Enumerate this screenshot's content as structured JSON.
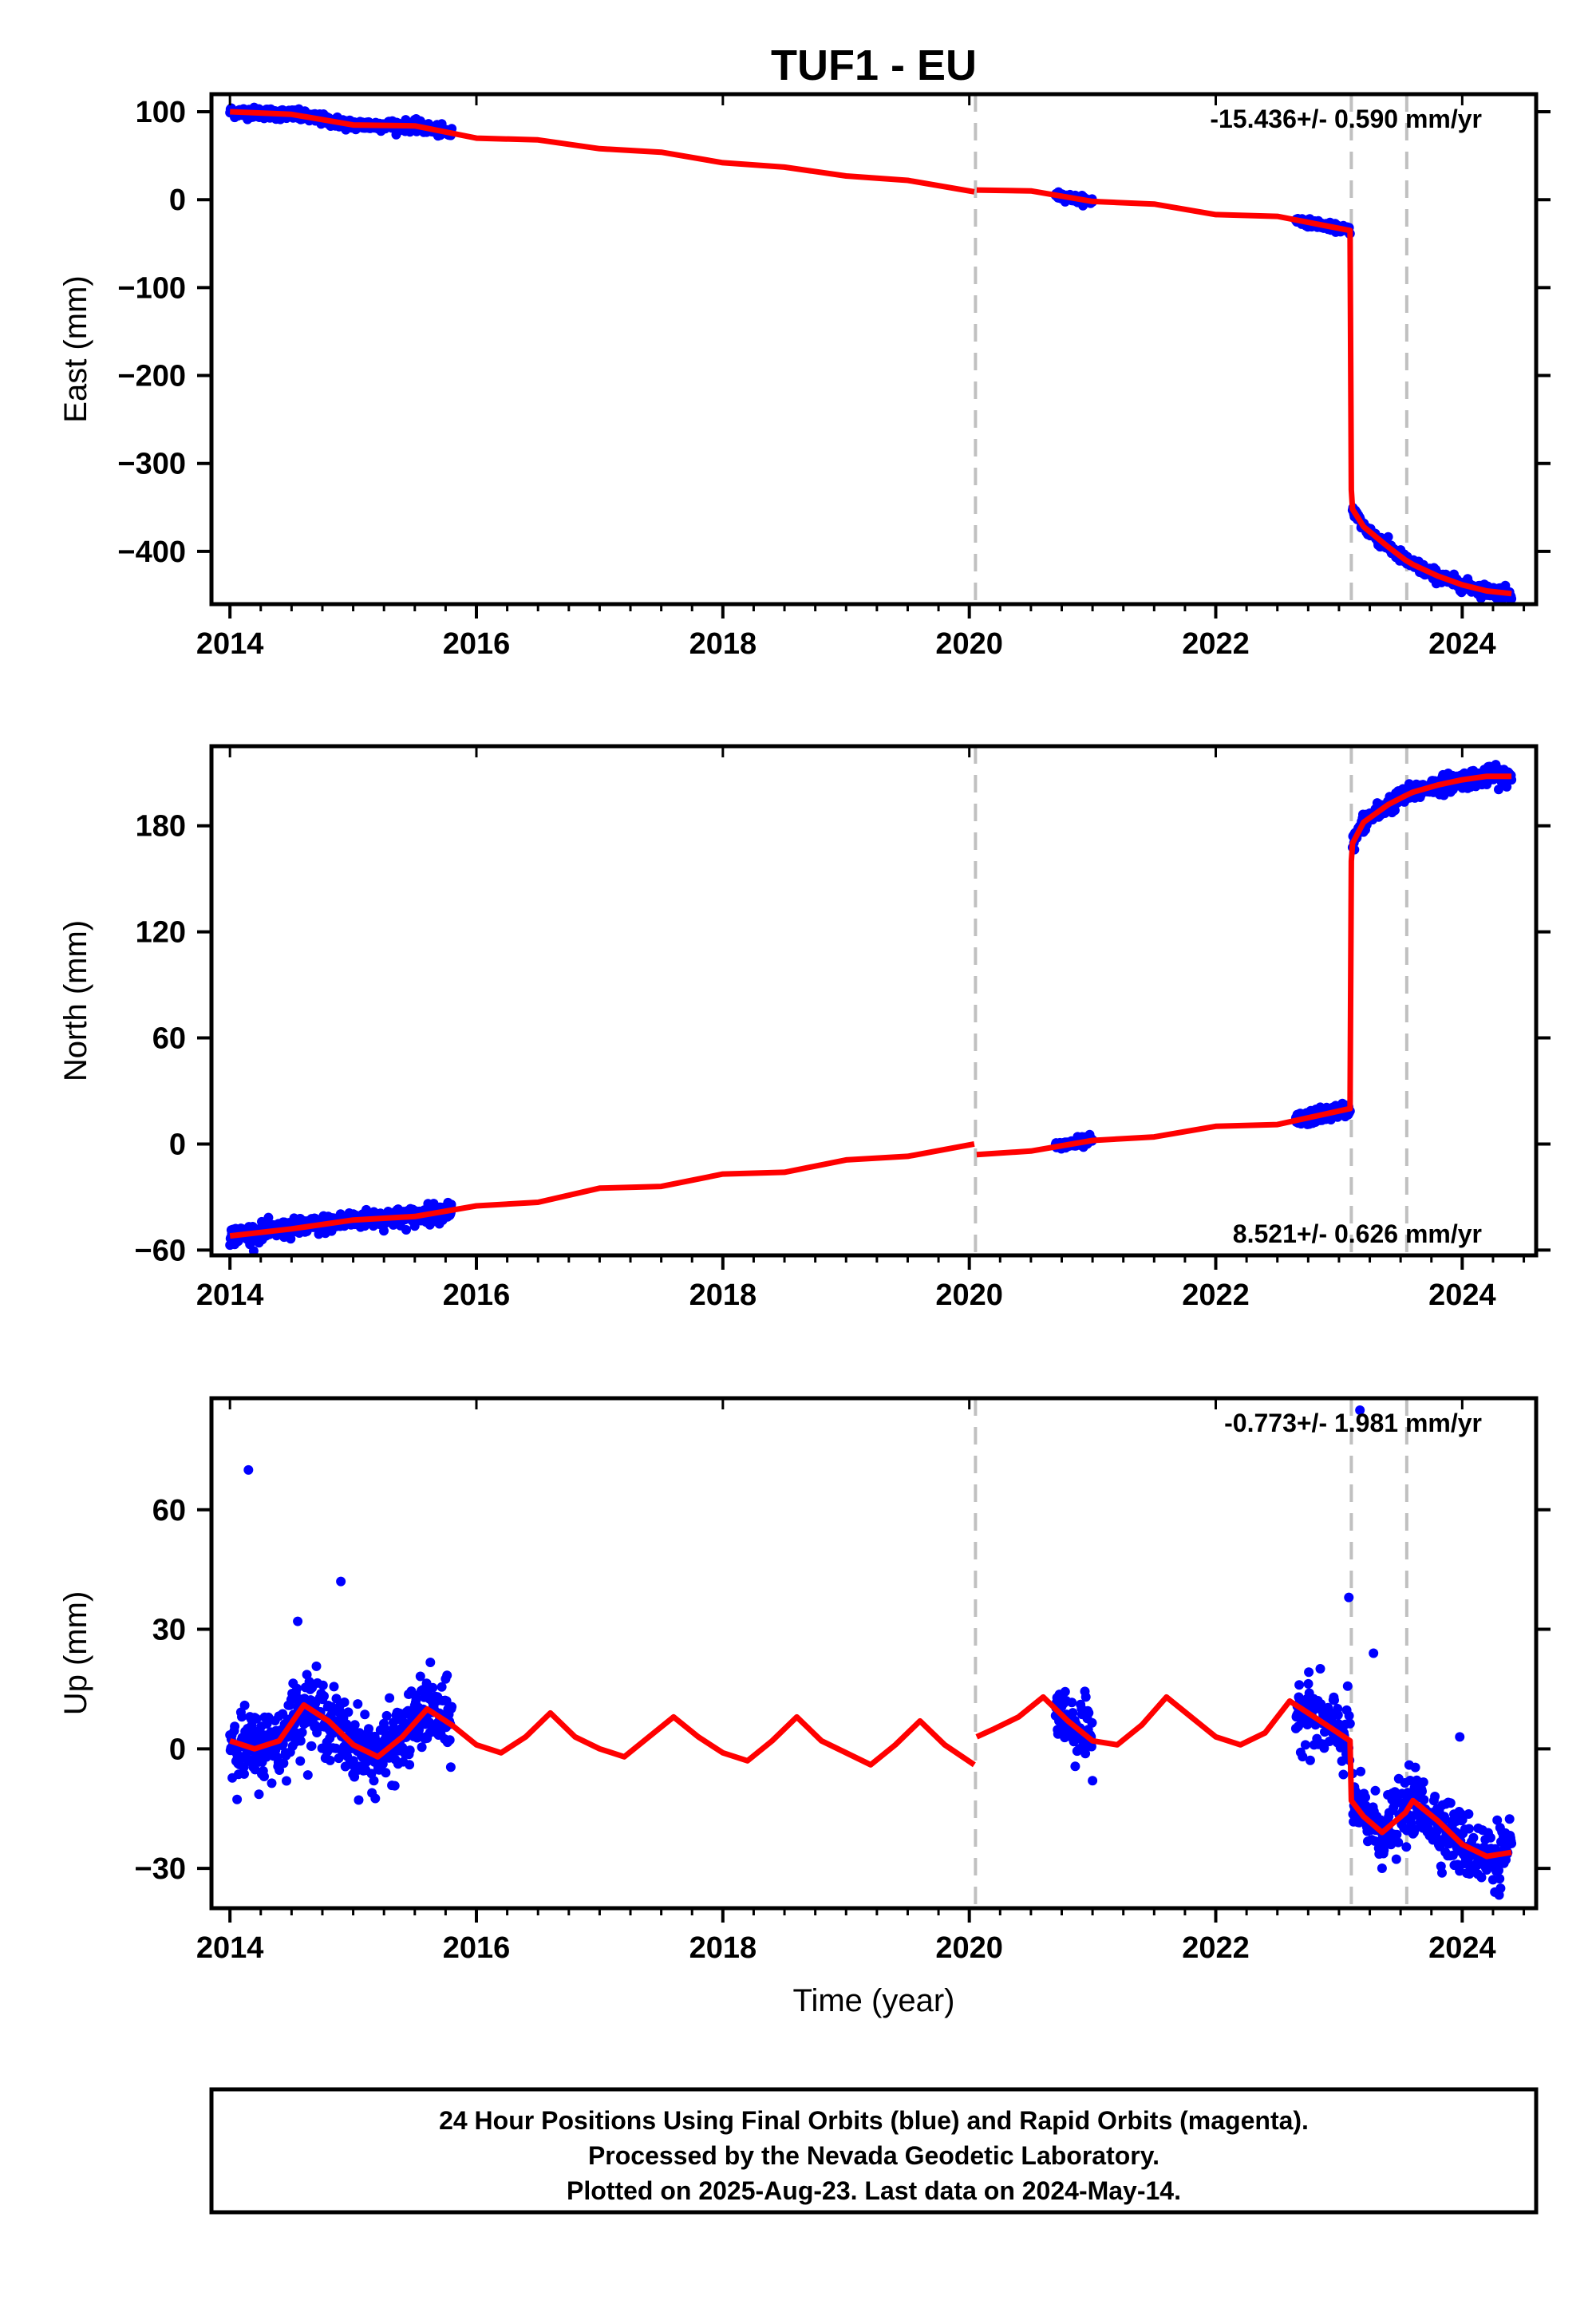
{
  "title": "TUF1 - EU",
  "xlabel": "Time (year)",
  "footer": {
    "line1": "24 Hour Positions Using Final Orbits (blue) and Rapid Orbits (magenta).",
    "line2": "Processed by the Nevada Geodetic Laboratory.",
    "line3": "Plotted on 2025-Aug-23. Last data on 2024-May-14."
  },
  "colors": {
    "obs": "#0000ff",
    "model": "#ff0000",
    "break": "#c0c0c0",
    "axis": "#000000"
  },
  "chart_data": [
    {
      "type": "scatter",
      "component": "east",
      "ylabel": "East (mm)",
      "rate": "-15.436+/- 0.590 mm/yr",
      "xlim": [
        2013.85,
        2024.6
      ],
      "ylim": [
        -460,
        120
      ],
      "xticks": [
        2014,
        2016,
        2018,
        2020,
        2022,
        2024
      ],
      "yticks": [
        100,
        0,
        -100,
        -200,
        -300,
        -400
      ],
      "breaks": [
        2020.05,
        2023.1,
        2023.55
      ],
      "model_x": [
        2014.0,
        2014.5,
        2015.0,
        2015.5,
        2016.0,
        2016.5,
        2017.0,
        2017.5,
        2018.0,
        2018.5,
        2019.0,
        2019.5,
        2020.04,
        2020.06,
        2020.5,
        2021.0,
        2021.5,
        2022.0,
        2022.5,
        2023.09,
        2023.1,
        2023.11,
        2023.2,
        2023.4,
        2023.54,
        2023.6,
        2023.8,
        2024.0,
        2024.2,
        2024.4
      ],
      "model_y": [
        100,
        97,
        85,
        84,
        70,
        68,
        58,
        54,
        42,
        37,
        27,
        22,
        9,
        11,
        10,
        -2,
        -5,
        -17,
        -19,
        -35,
        -330,
        -352,
        -372,
        -395,
        -410,
        -415,
        -428,
        -438,
        -445,
        -448
      ],
      "obs_segments": [
        {
          "x_start": 2014.0,
          "x_end": 2015.8,
          "sd": 3
        },
        {
          "x_start": 2020.7,
          "x_end": 2021.0,
          "sd": 2
        },
        {
          "x_start": 2022.65,
          "x_end": 2023.09,
          "sd": 2
        },
        {
          "x_start": 2023.11,
          "x_end": 2024.4,
          "sd": 3.5
        }
      ]
    },
    {
      "type": "scatter",
      "component": "north",
      "ylabel": "North (mm)",
      "rate": "8.521+/- 0.626 mm/yr",
      "xlim": [
        2013.85,
        2024.6
      ],
      "ylim": [
        -63,
        225
      ],
      "xticks": [
        2014,
        2016,
        2018,
        2020,
        2022,
        2024
      ],
      "yticks": [
        180,
        120,
        60,
        0,
        -60
      ],
      "breaks": [
        2020.05,
        2023.1,
        2023.55
      ],
      "model_x": [
        2014.0,
        2014.5,
        2015.0,
        2015.5,
        2016.0,
        2016.5,
        2017.0,
        2017.5,
        2018.0,
        2018.5,
        2019.0,
        2019.5,
        2020.04,
        2020.06,
        2020.5,
        2021.0,
        2021.5,
        2022.0,
        2022.5,
        2023.09,
        2023.1,
        2023.11,
        2023.2,
        2023.4,
        2023.54,
        2023.6,
        2023.8,
        2024.0,
        2024.2,
        2024.4
      ],
      "model_y": [
        -52,
        -48,
        -43,
        -41,
        -35,
        -33,
        -25,
        -24,
        -17,
        -16,
        -9,
        -7,
        0,
        -6,
        -4,
        2,
        4,
        10,
        11,
        20,
        160,
        170,
        182,
        192,
        197,
        199,
        203,
        206,
        208,
        208
      ],
      "obs_segments": [
        {
          "x_start": 2014.0,
          "x_end": 2015.8,
          "sd": 2.5
        },
        {
          "x_start": 2020.7,
          "x_end": 2021.0,
          "sd": 1.5
        },
        {
          "x_start": 2022.65,
          "x_end": 2023.09,
          "sd": 2
        },
        {
          "x_start": 2023.11,
          "x_end": 2024.4,
          "sd": 2.5
        }
      ]
    },
    {
      "type": "scatter",
      "component": "up",
      "ylabel": "Up (mm)",
      "rate": "-0.773+/- 1.981 mm/yr",
      "xlim": [
        2013.85,
        2024.6
      ],
      "ylim": [
        -40,
        88
      ],
      "xticks": [
        2014,
        2016,
        2018,
        2020,
        2022,
        2024
      ],
      "yticks": [
        60,
        30,
        0,
        -30
      ],
      "breaks": [
        2020.05,
        2023.1,
        2023.55
      ],
      "model_x": [
        2014.0,
        2014.2,
        2014.4,
        2014.6,
        2014.8,
        2015.0,
        2015.2,
        2015.4,
        2015.6,
        2015.8,
        2016.0,
        2016.2,
        2016.4,
        2016.6,
        2016.8,
        2017.0,
        2017.2,
        2017.4,
        2017.6,
        2017.8,
        2018.0,
        2018.2,
        2018.4,
        2018.6,
        2018.8,
        2019.0,
        2019.2,
        2019.4,
        2019.6,
        2019.8,
        2020.04,
        2020.06,
        2020.2,
        2020.4,
        2020.6,
        2020.8,
        2021.0,
        2021.2,
        2021.4,
        2021.6,
        2021.8,
        2022.0,
        2022.2,
        2022.4,
        2022.6,
        2022.8,
        2023.09,
        2023.1,
        2023.2,
        2023.35,
        2023.54,
        2023.6,
        2023.8,
        2024.0,
        2024.2,
        2024.4
      ],
      "model_y": [
        2,
        0,
        2,
        11,
        7,
        1,
        -2,
        3,
        10,
        6,
        1,
        -1,
        3,
        9,
        3,
        0,
        -2,
        3,
        8,
        3,
        -1,
        -3,
        2,
        8,
        2,
        -1,
        -4,
        1,
        7,
        1,
        -4,
        3,
        5,
        8,
        13,
        7,
        2,
        1,
        6,
        13,
        8,
        3,
        1,
        4,
        12,
        8,
        2,
        -13,
        -17,
        -21,
        -16,
        -13,
        -18,
        -24,
        -27,
        -26
      ],
      "obs_segments": [
        {
          "x_start": 2014.0,
          "x_end": 2015.8,
          "sd": 4.5
        },
        {
          "x_start": 2020.7,
          "x_end": 2021.0,
          "sd": 4
        },
        {
          "x_start": 2022.65,
          "x_end": 2023.09,
          "sd": 4.5
        },
        {
          "x_start": 2023.11,
          "x_end": 2024.4,
          "sd": 4
        }
      ],
      "outliers": [
        {
          "x": 2014.15,
          "y": 70
        },
        {
          "x": 2014.9,
          "y": 42
        },
        {
          "x": 2014.55,
          "y": 32
        },
        {
          "x": 2023.08,
          "y": 38
        },
        {
          "x": 2023.17,
          "y": 85
        },
        {
          "x": 2023.28,
          "y": 24
        },
        {
          "x": 2023.98,
          "y": 3
        }
      ]
    }
  ]
}
